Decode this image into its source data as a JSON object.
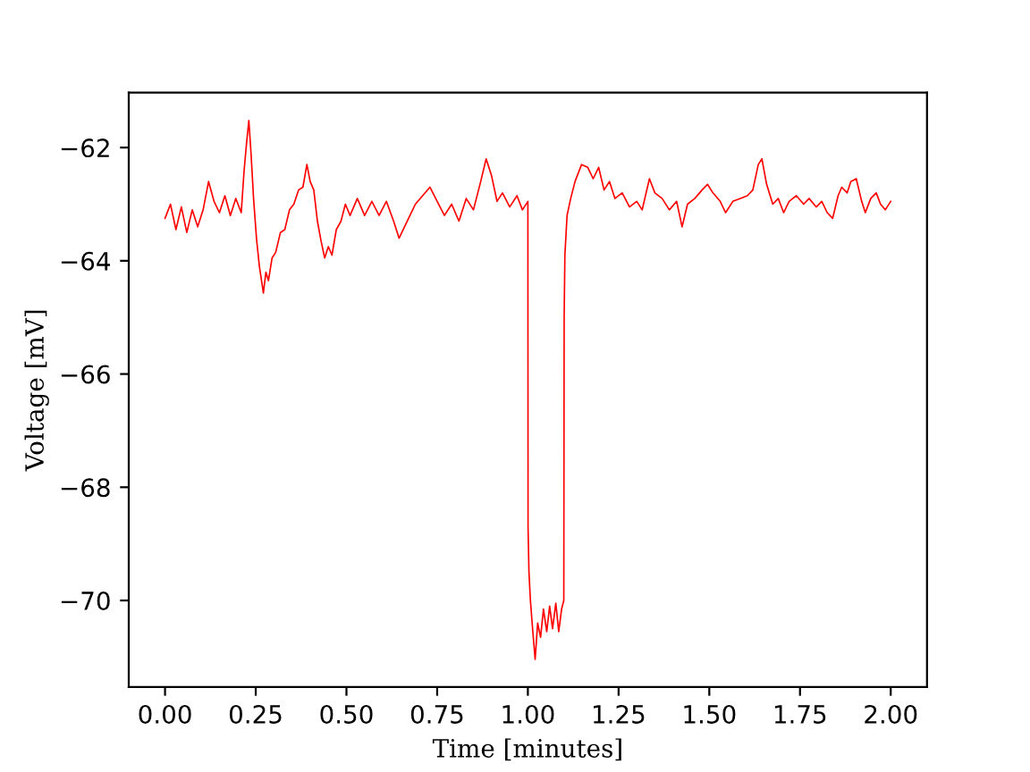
{
  "chart_data": {
    "type": "line",
    "xlabel": "Time [minutes]",
    "ylabel": "Voltage [mV]",
    "x": [
      0.0,
      0.015,
      0.03,
      0.045,
      0.06,
      0.075,
      0.09,
      0.105,
      0.12,
      0.135,
      0.15,
      0.165,
      0.18,
      0.195,
      0.21,
      0.218,
      0.225,
      0.231,
      0.237,
      0.244,
      0.252,
      0.26,
      0.266,
      0.271,
      0.278,
      0.285,
      0.295,
      0.305,
      0.318,
      0.33,
      0.343,
      0.355,
      0.368,
      0.38,
      0.391,
      0.4,
      0.41,
      0.42,
      0.43,
      0.44,
      0.45,
      0.46,
      0.472,
      0.485,
      0.497,
      0.51,
      0.53,
      0.55,
      0.57,
      0.59,
      0.61,
      0.63,
      0.645,
      0.66,
      0.675,
      0.69,
      0.71,
      0.73,
      0.75,
      0.77,
      0.79,
      0.81,
      0.83,
      0.85,
      0.87,
      0.885,
      0.9,
      0.915,
      0.93,
      0.95,
      0.97,
      0.985,
      1.0,
      1.0005,
      1.003,
      1.007,
      1.013,
      1.02,
      1.027,
      1.035,
      1.043,
      1.052,
      1.06,
      1.068,
      1.077,
      1.085,
      1.093,
      1.099,
      1.1,
      1.102,
      1.108,
      1.118,
      1.13,
      1.148,
      1.165,
      1.18,
      1.195,
      1.21,
      1.225,
      1.24,
      1.26,
      1.28,
      1.3,
      1.315,
      1.335,
      1.35,
      1.37,
      1.39,
      1.41,
      1.425,
      1.44,
      1.46,
      1.48,
      1.495,
      1.51,
      1.53,
      1.545,
      1.565,
      1.585,
      1.605,
      1.62,
      1.635,
      1.645,
      1.658,
      1.675,
      1.69,
      1.705,
      1.72,
      1.74,
      1.76,
      1.775,
      1.795,
      1.81,
      1.825,
      1.84,
      1.855,
      1.865,
      1.88,
      1.89,
      1.905,
      1.92,
      1.93,
      1.945,
      1.96,
      1.972,
      1.985,
      2.0
    ],
    "series": [
      {
        "color": "#ff0000",
        "values": [
          -63.25,
          -63.0,
          -63.45,
          -63.05,
          -63.5,
          -63.1,
          -63.4,
          -63.1,
          -62.6,
          -62.95,
          -63.15,
          -62.85,
          -63.2,
          -62.9,
          -63.15,
          -62.4,
          -61.9,
          -61.52,
          -62.1,
          -62.9,
          -63.6,
          -64.1,
          -64.35,
          -64.57,
          -64.2,
          -64.35,
          -63.95,
          -63.85,
          -63.5,
          -63.45,
          -63.1,
          -63.0,
          -62.75,
          -62.7,
          -62.3,
          -62.6,
          -62.75,
          -63.3,
          -63.65,
          -63.95,
          -63.75,
          -63.9,
          -63.45,
          -63.3,
          -63.0,
          -63.2,
          -62.9,
          -63.2,
          -62.95,
          -63.2,
          -62.95,
          -63.3,
          -63.6,
          -63.4,
          -63.2,
          -63.0,
          -62.85,
          -62.7,
          -62.95,
          -63.2,
          -63.0,
          -63.3,
          -62.9,
          -63.1,
          -62.6,
          -62.2,
          -62.5,
          -62.95,
          -62.8,
          -63.05,
          -62.85,
          -63.1,
          -62.95,
          -68.7,
          -69.5,
          -70.0,
          -70.5,
          -71.04,
          -70.4,
          -70.65,
          -70.15,
          -70.55,
          -70.1,
          -70.5,
          -70.05,
          -70.55,
          -70.15,
          -70.0,
          -65.0,
          -63.9,
          -63.2,
          -62.9,
          -62.6,
          -62.3,
          -62.35,
          -62.55,
          -62.35,
          -62.75,
          -62.6,
          -62.9,
          -62.8,
          -63.05,
          -62.95,
          -63.1,
          -62.55,
          -62.8,
          -62.9,
          -63.1,
          -62.95,
          -63.4,
          -63.0,
          -62.9,
          -62.75,
          -62.65,
          -62.8,
          -62.95,
          -63.15,
          -62.95,
          -62.9,
          -62.85,
          -62.75,
          -62.3,
          -62.2,
          -62.65,
          -63.0,
          -62.9,
          -63.15,
          -62.95,
          -62.85,
          -63.0,
          -62.9,
          -63.05,
          -62.95,
          -63.15,
          -63.25,
          -62.85,
          -62.7,
          -62.8,
          -62.6,
          -62.55,
          -62.95,
          -63.15,
          -62.9,
          -62.8,
          -63.0,
          -63.1,
          -62.95
        ]
      }
    ],
    "xlim": [
      -0.1,
      2.1
    ],
    "ylim": [
      -71.53,
      -61.03
    ],
    "xticks": [
      {
        "value": 0,
        "label": "0.00"
      },
      {
        "value": 0.25,
        "label": "0.25"
      },
      {
        "value": 0.5,
        "label": "0.50"
      },
      {
        "value": 0.75,
        "label": "0.75"
      },
      {
        "value": 1,
        "label": "1.00"
      },
      {
        "value": 1.25,
        "label": "1.25"
      },
      {
        "value": 1.5,
        "label": "1.50"
      },
      {
        "value": 1.75,
        "label": "1.75"
      },
      {
        "value": 2,
        "label": "2.00"
      }
    ],
    "yticks": [
      {
        "value": -70,
        "label": "−70"
      },
      {
        "value": -68,
        "label": "−68"
      },
      {
        "value": -66,
        "label": "−66"
      },
      {
        "value": -64,
        "label": "−64"
      },
      {
        "value": -62,
        "label": "−62"
      }
    ],
    "line_style": "solid"
  }
}
